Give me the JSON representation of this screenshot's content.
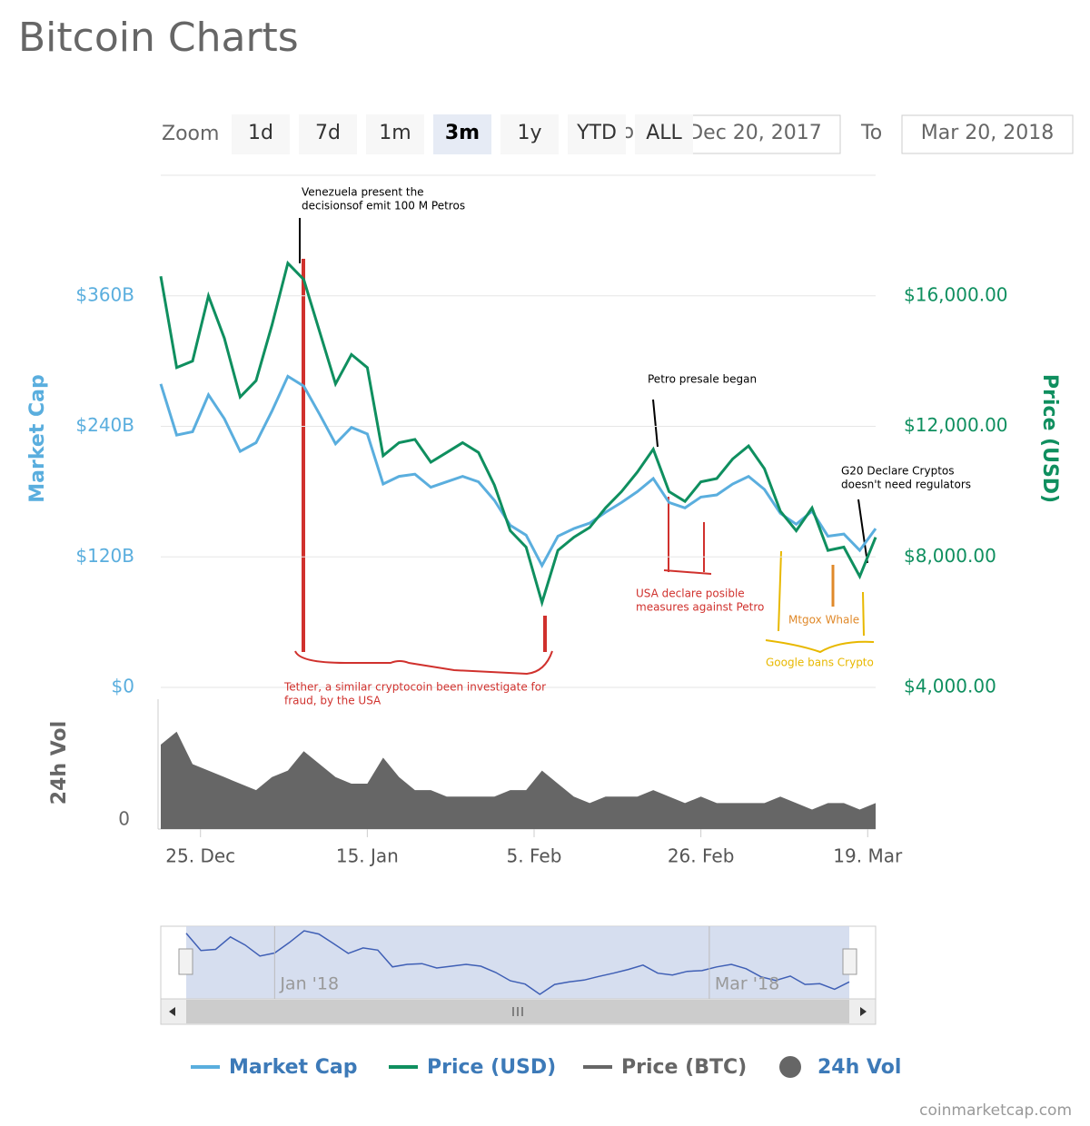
{
  "header": {
    "title": "Bitcoin Charts"
  },
  "zoom": {
    "label": "Zoom",
    "buttons": [
      "1d",
      "7d",
      "1m",
      "3m",
      "1y",
      "YTD",
      "ALL"
    ],
    "selected": "3m"
  },
  "range": {
    "from_label": "From",
    "from": "Dec 20, 2017",
    "to_label": "To",
    "to": "Mar 20, 2018"
  },
  "chart_data": [
    {
      "type": "line",
      "x": [
        "2017-12-20",
        "2017-12-22",
        "2017-12-24",
        "2017-12-26",
        "2017-12-28",
        "2017-12-30",
        "2018-01-01",
        "2018-01-03",
        "2018-01-05",
        "2018-01-07",
        "2018-01-09",
        "2018-01-11",
        "2018-01-13",
        "2018-01-15",
        "2018-01-17",
        "2018-01-19",
        "2018-01-21",
        "2018-01-23",
        "2018-01-25",
        "2018-01-27",
        "2018-01-29",
        "2018-01-31",
        "2018-02-02",
        "2018-02-04",
        "2018-02-06",
        "2018-02-08",
        "2018-02-10",
        "2018-02-12",
        "2018-02-14",
        "2018-02-16",
        "2018-02-18",
        "2018-02-20",
        "2018-02-22",
        "2018-02-24",
        "2018-02-26",
        "2018-02-28",
        "2018-03-02",
        "2018-03-04",
        "2018-03-06",
        "2018-03-08",
        "2018-03-10",
        "2018-03-12",
        "2018-03-14",
        "2018-03-16",
        "2018-03-18",
        "2018-03-20"
      ],
      "series": [
        {
          "name": "Market Cap",
          "color": "#5aaede",
          "axis": "y",
          "values": [
            279,
            232,
            235,
            269,
            247,
            217,
            225,
            254,
            286,
            277,
            251,
            224,
            239,
            233,
            187,
            194,
            196,
            184,
            189,
            194,
            189,
            172,
            149,
            140,
            112,
            139,
            146,
            151,
            161,
            170,
            180,
            192,
            170,
            165,
            175,
            177,
            187,
            194,
            182,
            160,
            150,
            162,
            139,
            141,
            126,
            146
          ]
        },
        {
          "name": "Price (USD)",
          "color": "#0f8f5f",
          "axis": "y2",
          "values": [
            16600,
            13800,
            14000,
            16000,
            14700,
            12900,
            13400,
            15100,
            17000,
            16500,
            14900,
            13300,
            14200,
            13800,
            11100,
            11500,
            11600,
            10900,
            11200,
            11500,
            11200,
            10200,
            8800,
            8300,
            6600,
            8200,
            8600,
            8900,
            9500,
            10000,
            10600,
            11300,
            10000,
            9700,
            10300,
            10400,
            11000,
            11400,
            10700,
            9400,
            8800,
            9500,
            8200,
            8300,
            7400,
            8600
          ]
        },
        {
          "name": "Price (BTC)",
          "color": "#666666",
          "visible": false
        }
      ],
      "ylabel": "Market Cap",
      "y2label": "Price (USD)",
      "ylim": [
        0,
        480
      ],
      "yticks": [
        {
          "value": 0,
          "label": "$0"
        },
        {
          "value": 120,
          "label": "$120B"
        },
        {
          "value": 240,
          "label": "$240B"
        },
        {
          "value": 360,
          "label": "$360B"
        }
      ],
      "y2lim": [
        4000,
        20000
      ],
      "y2ticks": [
        {
          "value": 4000,
          "label": "$4,000.00"
        },
        {
          "value": 8000,
          "label": "$8,000.00"
        },
        {
          "value": 12000,
          "label": "$12,000.00"
        },
        {
          "value": 16000,
          "label": "$16,000.00"
        }
      ],
      "grid": true,
      "annotations": [
        {
          "lines": [
            "Venezuela present the",
            "decisionsof emit 100 M Petros"
          ],
          "color": "#000000"
        },
        {
          "lines": [
            "Tether, a similar cryptocoin been investigate for",
            "fraud, by the USA"
          ],
          "color": "#d0312d"
        },
        {
          "lines": [
            "USA declare posible",
            "measures against Petro"
          ],
          "color": "#d0312d"
        },
        {
          "lines": [
            "Petro presale began"
          ],
          "color": "#000000"
        },
        {
          "lines": [
            "G20 Declare Cryptos",
            "doesn't need regulators"
          ],
          "color": "#000000"
        },
        {
          "lines": [
            "Mtgox Whale"
          ],
          "color": "#e0892a"
        },
        {
          "lines": [
            "Google bans Crypto"
          ],
          "color": "#e8b800"
        }
      ]
    },
    {
      "type": "area",
      "x": [
        "2017-12-20",
        "2017-12-22",
        "2017-12-24",
        "2017-12-26",
        "2017-12-28",
        "2017-12-30",
        "2018-01-01",
        "2018-01-03",
        "2018-01-05",
        "2018-01-07",
        "2018-01-09",
        "2018-01-11",
        "2018-01-13",
        "2018-01-15",
        "2018-01-17",
        "2018-01-19",
        "2018-01-21",
        "2018-01-23",
        "2018-01-25",
        "2018-01-27",
        "2018-01-29",
        "2018-01-31",
        "2018-02-02",
        "2018-02-04",
        "2018-02-06",
        "2018-02-08",
        "2018-02-10",
        "2018-02-12",
        "2018-02-14",
        "2018-02-16",
        "2018-02-18",
        "2018-02-20",
        "2018-02-22",
        "2018-02-24",
        "2018-02-26",
        "2018-02-28",
        "2018-03-02",
        "2018-03-04",
        "2018-03-06",
        "2018-03-08",
        "2018-03-10",
        "2018-03-12",
        "2018-03-14",
        "2018-03-16",
        "2018-03-18",
        "2018-03-20"
      ],
      "series": [
        {
          "name": "24h Vol",
          "color": "#666666",
          "values": [
            13,
            15,
            10,
            9,
            8,
            7,
            6,
            8,
            9,
            12,
            10,
            8,
            7,
            7,
            11,
            8,
            6,
            6,
            5,
            5,
            5,
            5,
            6,
            6,
            9,
            7,
            5,
            4,
            5,
            5,
            5,
            6,
            5,
            4,
            5,
            4,
            4,
            4,
            4,
            5,
            4,
            3,
            4,
            4,
            3,
            4
          ]
        }
      ],
      "ylabel": "24h Vol",
      "ylim": [
        0,
        20
      ],
      "yticks": [
        0
      ],
      "xticks": [
        {
          "value": "2017-12-25",
          "label": "25. Dec"
        },
        {
          "value": "2018-01-15",
          "label": "15. Jan"
        },
        {
          "value": "2018-02-05",
          "label": "5. Feb"
        },
        {
          "value": "2018-02-26",
          "label": "26. Feb"
        },
        {
          "value": "2018-03-19",
          "label": "19. Mar"
        }
      ]
    }
  ],
  "navigator": {
    "ticks": [
      {
        "value": "2018-01-01",
        "label": "Jan '18"
      },
      {
        "value": "2018-03-01",
        "label": "Mar '18"
      }
    ]
  },
  "credit": "coinmarketcap.com"
}
